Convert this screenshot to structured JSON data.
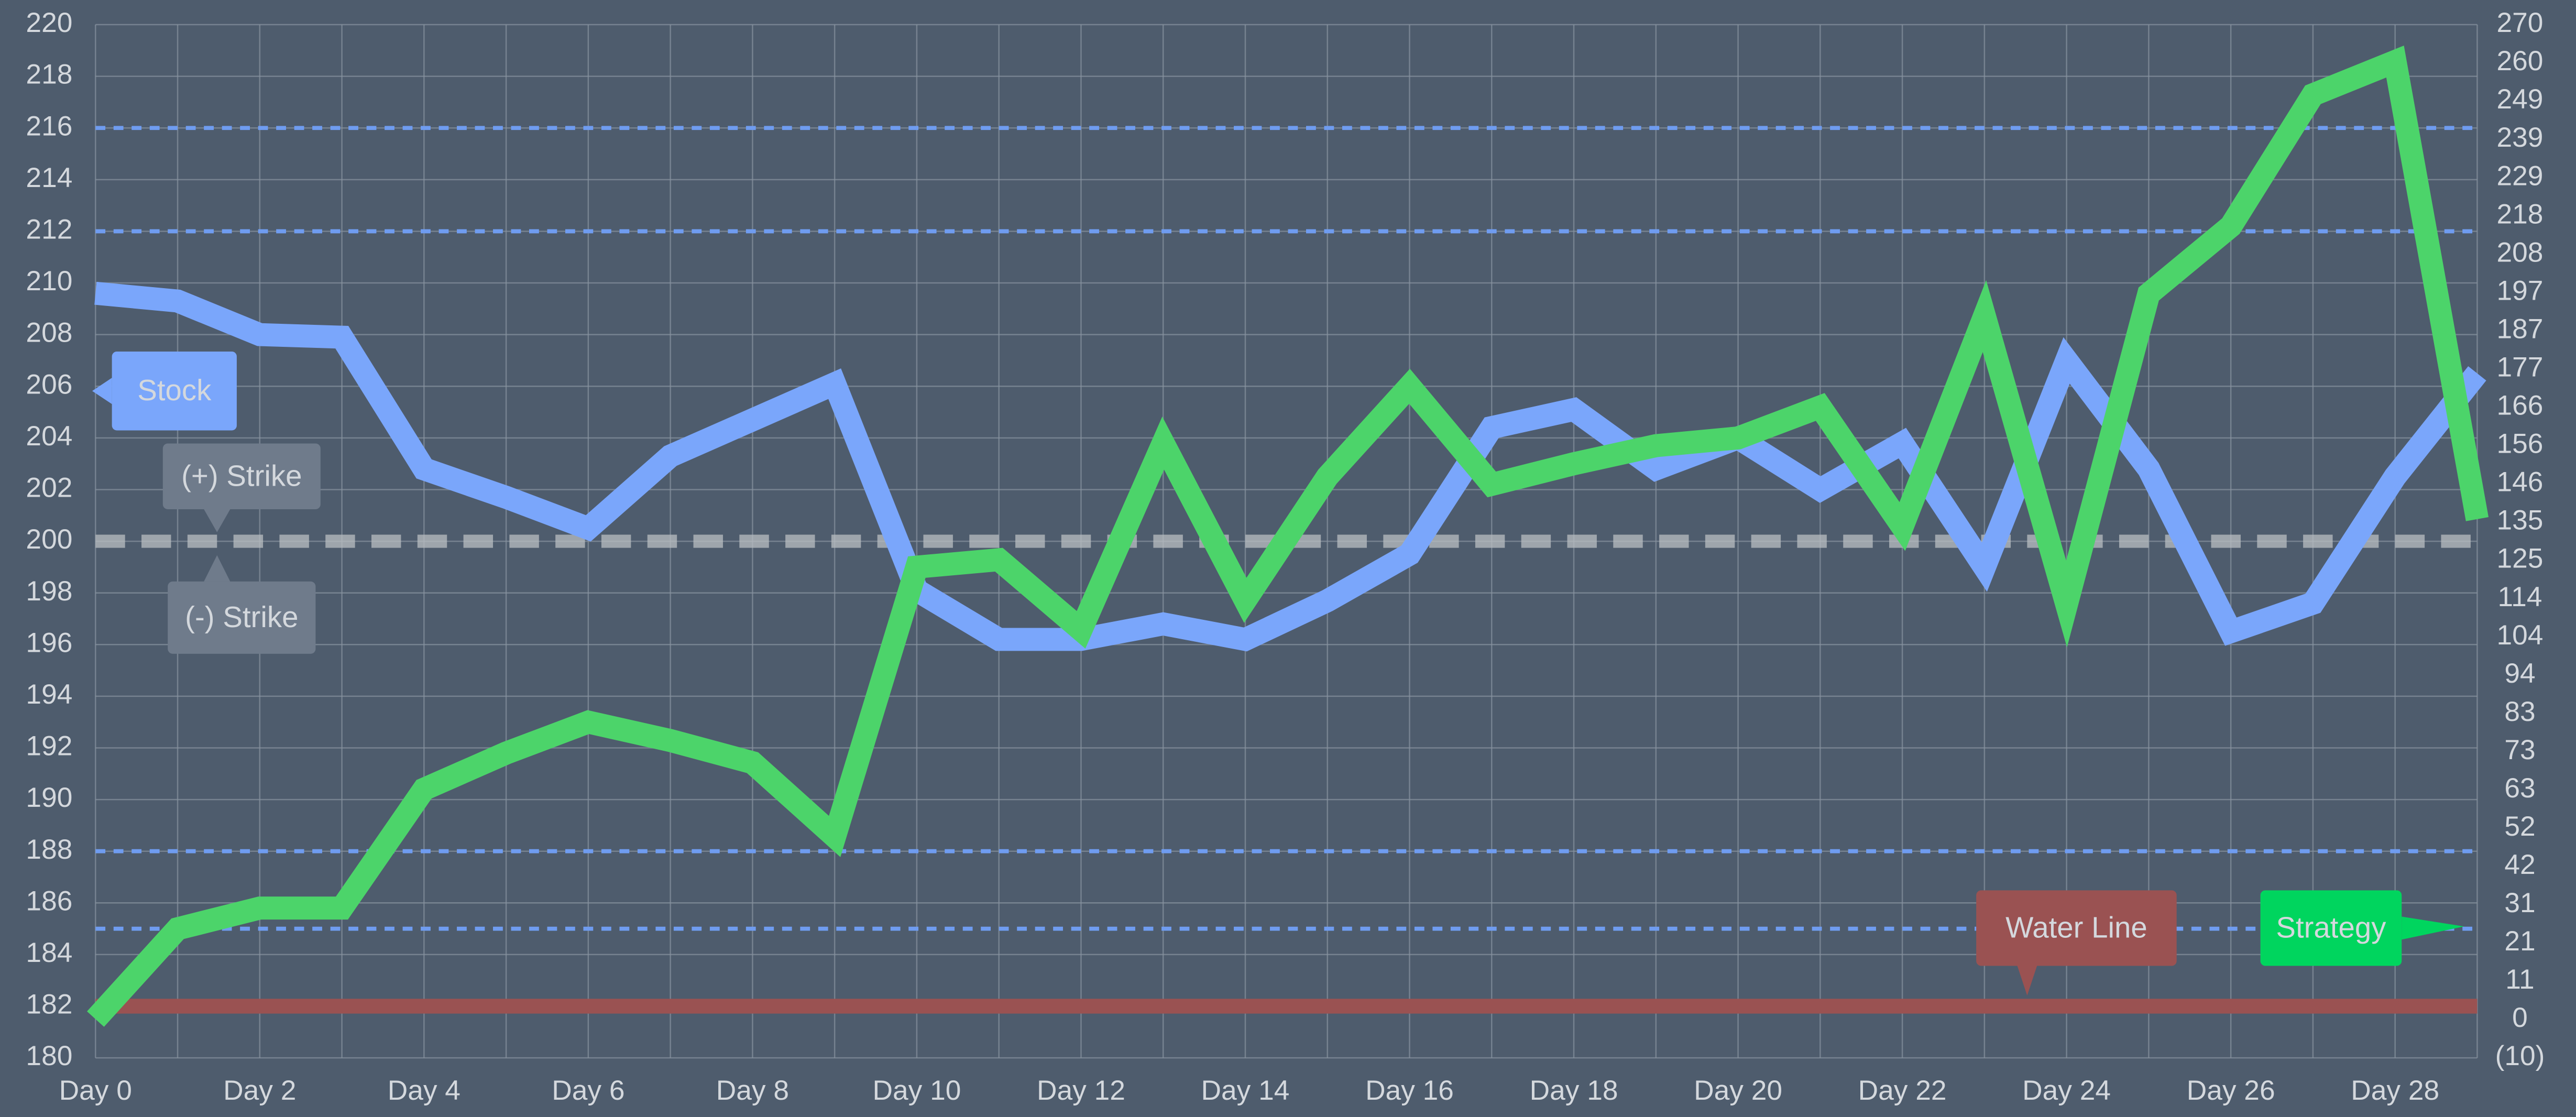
{
  "chart_data": {
    "type": "line",
    "categories": [
      "Day 0",
      null,
      "Day 2",
      null,
      "Day 4",
      null,
      "Day 6",
      null,
      "Day 8",
      null,
      "Day 10",
      null,
      "Day 12",
      null,
      "Day 14",
      null,
      "Day 16",
      null,
      "Day 18",
      null,
      "Day 20",
      null,
      "Day 22",
      null,
      "Day 24",
      null,
      "Day 26",
      null,
      "Day 28",
      null
    ],
    "series": [
      {
        "name": "Stock",
        "color": "#7aa6fb",
        "axis": "y",
        "values": [
          209.6,
          209.3,
          208.0,
          207.9,
          202.8,
          201.7,
          200.5,
          203.3,
          204.7,
          206.1,
          198.1,
          196.2,
          196.2,
          196.8,
          196.2,
          197.7,
          199.5,
          204.4,
          205.1,
          202.8,
          204.0,
          202.0,
          203.8,
          199.0,
          207.0,
          202.8,
          196.5,
          197.6,
          202.5,
          206.5
        ]
      },
      {
        "name": "Strategy",
        "color": "#4cd46a",
        "axis": "y2",
        "values": [
          0.5,
          25,
          30.6,
          30.6,
          62.8,
          72.6,
          81,
          76,
          70,
          50,
          123,
          125,
          106,
          156.6,
          114,
          147.5,
          172,
          145.4,
          151,
          155.9,
          158,
          166.4,
          134,
          191,
          113,
          197,
          215.4,
          251,
          260,
          136
        ]
      }
    ],
    "ylim": [
      180,
      220
    ],
    "yticks": [
      180,
      182,
      184,
      186,
      188,
      190,
      192,
      194,
      196,
      198,
      200,
      202,
      204,
      206,
      208,
      210,
      212,
      214,
      216,
      218,
      220
    ],
    "y2lim": [
      -10,
      270
    ],
    "y2ticks": [
      {
        "value": -10,
        "label": "(10)"
      },
      {
        "value": 0.37,
        "label": "0"
      },
      {
        "value": 10.74,
        "label": "11"
      },
      {
        "value": 21.11,
        "label": "21"
      },
      {
        "value": 31.48,
        "label": "31"
      },
      {
        "value": 41.85,
        "label": "42"
      },
      {
        "value": 52.22,
        "label": "52"
      },
      {
        "value": 62.59,
        "label": "63"
      },
      {
        "value": 72.96,
        "label": "73"
      },
      {
        "value": 83.33,
        "label": "83"
      },
      {
        "value": 93.7,
        "label": "94"
      },
      {
        "value": 104.07,
        "label": "104"
      },
      {
        "value": 114.44,
        "label": "114"
      },
      {
        "value": 124.81,
        "label": "125"
      },
      {
        "value": 135.19,
        "label": "135"
      },
      {
        "value": 145.56,
        "label": "146"
      },
      {
        "value": 155.93,
        "label": "156"
      },
      {
        "value": 166.3,
        "label": "166"
      },
      {
        "value": 176.67,
        "label": "177"
      },
      {
        "value": 187.04,
        "label": "187"
      },
      {
        "value": 197.41,
        "label": "197"
      },
      {
        "value": 207.78,
        "label": "208"
      },
      {
        "value": 218.15,
        "label": "218"
      },
      {
        "value": 228.52,
        "label": "229"
      },
      {
        "value": 238.89,
        "label": "239"
      },
      {
        "value": 249.26,
        "label": "249"
      },
      {
        "value": 259.63,
        "label": "260"
      },
      {
        "value": 270,
        "label": "270"
      }
    ],
    "grid": true,
    "reference_lines": [
      {
        "value": 216,
        "color": "#6f9cf0"
      },
      {
        "value": 212,
        "color": "#6f9cf0"
      },
      {
        "value": 188,
        "color": "#6f9cf0"
      },
      {
        "value": 185,
        "color": "#6f9cf0"
      }
    ],
    "strike": {
      "value": 200,
      "color": "#b9bdc2",
      "labels": [
        "(+) Strike",
        "(-) Strike"
      ]
    },
    "water_line": {
      "value": 182,
      "color": "#9a5252",
      "label": "Water Line"
    }
  }
}
